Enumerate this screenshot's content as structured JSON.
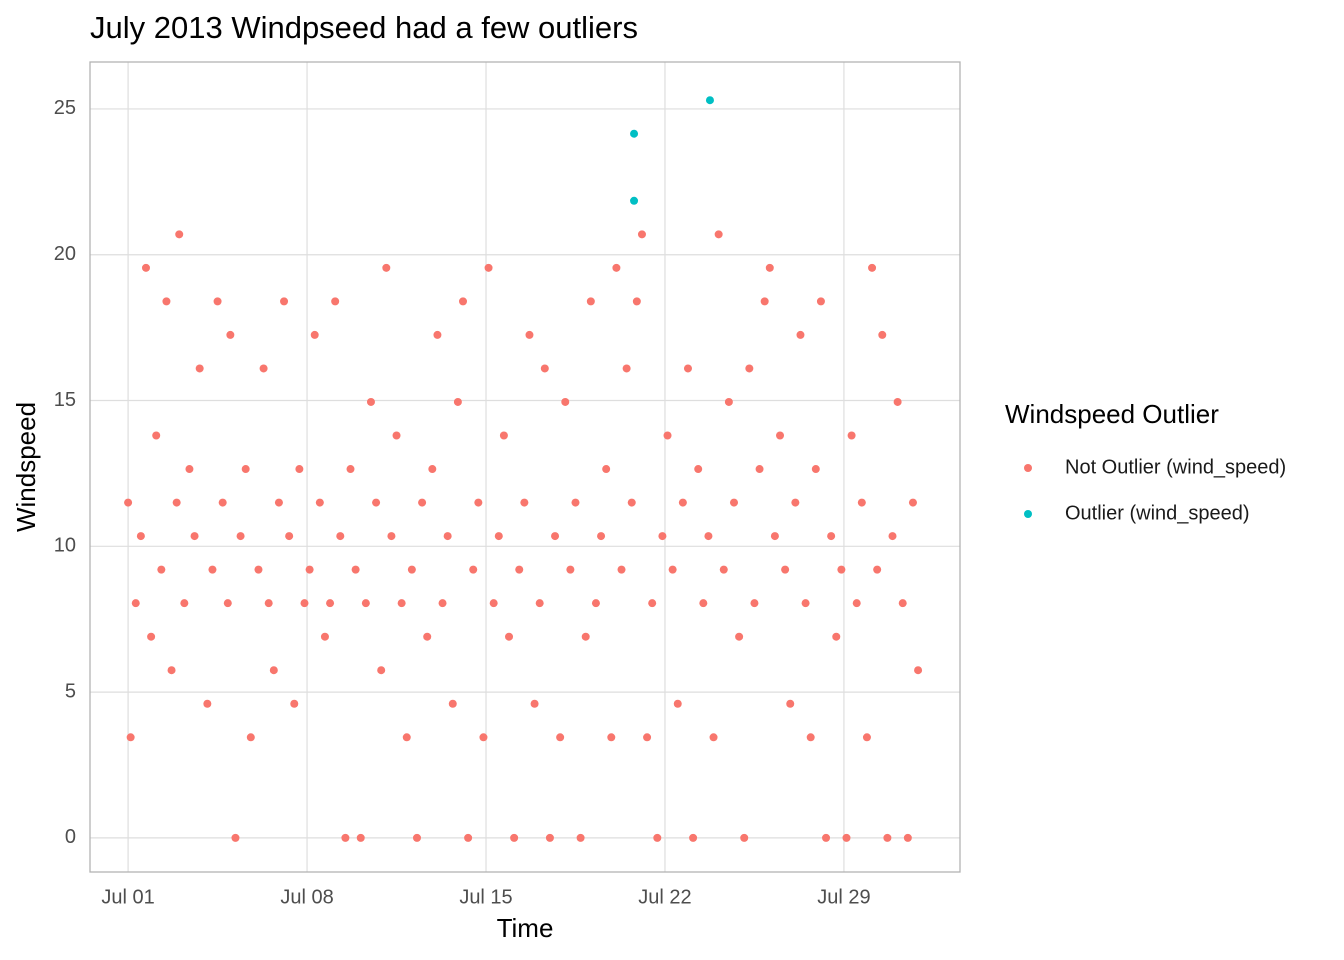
{
  "chart_data": {
    "type": "scatter",
    "title": "July 2013 Windpseed had a few outliers",
    "x_label": "Time",
    "y_label": "Windspeed",
    "legend_title": "Windspeed Outlier",
    "legend_position": "right",
    "grid": true,
    "xlim": [
      -0.49,
      33.54
    ],
    "ylim": [
      -1.17,
      26.61
    ],
    "xticks": [
      {
        "value": 1,
        "label": "Jul 01"
      },
      {
        "value": 8,
        "label": "Jul 08"
      },
      {
        "value": 15,
        "label": "Jul 15"
      },
      {
        "value": 22,
        "label": "Jul 22"
      },
      {
        "value": 29,
        "label": "Jul 29"
      }
    ],
    "yticks": [
      0,
      5,
      10,
      15,
      20,
      25
    ],
    "series": [
      {
        "name": "Not Outlier (wind_speed)",
        "color": "#F8766D",
        "x": [
          1.0,
          1.1,
          1.3,
          1.5,
          1.7,
          1.9,
          2.1,
          2.3,
          2.5,
          2.7,
          2.9,
          3.0,
          3.2,
          3.4,
          3.6,
          3.8,
          4.1,
          4.3,
          4.5,
          4.7,
          4.9,
          5.0,
          5.2,
          5.4,
          5.6,
          5.8,
          6.1,
          6.3,
          6.5,
          6.7,
          6.9,
          7.1,
          7.3,
          7.5,
          7.7,
          7.9,
          8.1,
          8.3,
          8.5,
          8.7,
          8.9,
          9.1,
          9.3,
          9.5,
          9.7,
          9.9,
          10.1,
          10.3,
          10.5,
          10.7,
          10.9,
          11.1,
          11.3,
          11.5,
          11.7,
          11.9,
          12.1,
          12.3,
          12.5,
          12.7,
          12.9,
          13.1,
          13.3,
          13.5,
          13.7,
          13.9,
          14.1,
          14.3,
          14.5,
          14.7,
          14.9,
          15.1,
          15.3,
          15.5,
          15.7,
          15.9,
          16.1,
          16.3,
          16.5,
          16.7,
          16.9,
          17.1,
          17.3,
          17.5,
          17.7,
          17.9,
          18.1,
          18.3,
          18.5,
          18.7,
          18.9,
          19.1,
          19.3,
          19.5,
          19.7,
          19.9,
          20.1,
          20.3,
          20.5,
          20.7,
          20.9,
          21.1,
          21.3,
          21.5,
          21.7,
          21.9,
          22.1,
          22.3,
          22.5,
          22.7,
          22.9,
          23.1,
          23.3,
          23.5,
          23.7,
          23.9,
          24.1,
          24.3,
          24.5,
          24.7,
          24.9,
          25.1,
          25.3,
          25.5,
          25.7,
          25.9,
          26.1,
          26.3,
          26.5,
          26.7,
          26.9,
          27.1,
          27.3,
          27.5,
          27.7,
          27.9,
          28.1,
          28.3,
          28.5,
          28.7,
          28.9,
          29.1,
          29.3,
          29.5,
          29.7,
          29.9,
          30.1,
          30.3,
          30.5,
          30.7,
          30.9,
          31.1,
          31.3,
          31.5,
          31.7,
          31.9
        ],
        "values": [
          11.5,
          3.45,
          8.05,
          10.35,
          19.55,
          6.9,
          13.8,
          9.2,
          18.4,
          5.75,
          11.5,
          20.7,
          8.05,
          12.65,
          10.35,
          16.1,
          4.6,
          9.2,
          18.4,
          11.5,
          8.05,
          17.25,
          0,
          10.35,
          12.65,
          3.45,
          9.2,
          16.1,
          8.05,
          5.75,
          11.5,
          18.4,
          10.35,
          4.6,
          12.65,
          8.05,
          9.2,
          17.25,
          11.5,
          6.9,
          8.05,
          18.4,
          10.35,
          0,
          12.65,
          9.2,
          0,
          8.05,
          14.95,
          11.5,
          5.75,
          19.55,
          10.35,
          13.8,
          8.05,
          3.45,
          9.2,
          0,
          11.5,
          6.9,
          12.65,
          17.25,
          8.05,
          10.35,
          4.6,
          14.95,
          18.4,
          0,
          9.2,
          11.5,
          3.45,
          19.55,
          8.05,
          10.35,
          13.8,
          6.9,
          0,
          9.2,
          11.5,
          17.25,
          4.6,
          8.05,
          16.1,
          0,
          10.35,
          3.45,
          14.95,
          9.2,
          11.5,
          0,
          6.9,
          18.4,
          8.05,
          10.35,
          12.65,
          3.45,
          19.55,
          9.2,
          16.1,
          11.5,
          18.4,
          20.7,
          3.45,
          8.05,
          0,
          10.35,
          13.8,
          9.2,
          4.6,
          11.5,
          16.1,
          0,
          12.65,
          8.05,
          10.35,
          3.45,
          20.7,
          9.2,
          14.95,
          11.5,
          6.9,
          0,
          16.1,
          8.05,
          12.65,
          18.4,
          19.55,
          10.35,
          13.8,
          9.2,
          4.6,
          11.5,
          17.25,
          8.05,
          3.45,
          12.65,
          18.4,
          0,
          10.35,
          6.9,
          9.2,
          0,
          13.8,
          8.05,
          11.5,
          3.45,
          19.55,
          9.2,
          17.25,
          0,
          10.35,
          14.95,
          8.05,
          0,
          11.5,
          5.75
        ]
      },
      {
        "name": "Outlier (wind_speed)",
        "color": "#00BFC4",
        "x": [
          20.79,
          20.79,
          23.76
        ],
        "values": [
          24.15,
          21.85,
          25.3
        ]
      }
    ]
  }
}
